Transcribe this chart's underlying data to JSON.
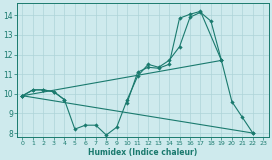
{
  "xlabel": "Humidex (Indice chaleur)",
  "background_color": "#ceeaed",
  "grid_color": "#add4d8",
  "line_color": "#1a7a6e",
  "xlim": [
    -0.5,
    23.5
  ],
  "ylim": [
    7.8,
    14.6
  ],
  "xticks": [
    0,
    1,
    2,
    3,
    4,
    5,
    6,
    7,
    8,
    9,
    10,
    11,
    12,
    13,
    14,
    15,
    16,
    17,
    18,
    19,
    20,
    21,
    22,
    23
  ],
  "yticks": [
    8,
    9,
    10,
    11,
    12,
    13,
    14
  ],
  "series1_x": [
    0,
    1,
    2,
    3,
    4,
    5,
    6,
    7,
    8,
    9,
    10,
    11,
    12,
    13,
    14,
    15,
    16,
    17,
    18,
    19,
    20,
    21,
    22
  ],
  "series1_y": [
    9.9,
    10.2,
    10.2,
    10.1,
    9.7,
    8.2,
    8.4,
    8.4,
    7.9,
    8.3,
    9.7,
    10.9,
    11.5,
    11.35,
    11.7,
    12.4,
    13.9,
    14.15,
    13.7,
    11.7,
    9.6,
    8.8,
    8.0
  ],
  "series2_x": [
    0,
    1,
    2,
    3,
    4,
    10,
    11,
    12,
    13,
    14,
    15,
    16,
    17,
    19
  ],
  "series2_y": [
    9.9,
    10.2,
    10.2,
    10.1,
    9.7,
    9.55,
    11.1,
    11.35,
    11.3,
    11.5,
    13.85,
    14.05,
    14.2,
    11.7
  ],
  "series3_x": [
    0,
    22
  ],
  "series3_y": [
    9.9,
    8.0
  ],
  "series4_x": [
    0,
    19
  ],
  "series4_y": [
    9.9,
    11.7
  ]
}
